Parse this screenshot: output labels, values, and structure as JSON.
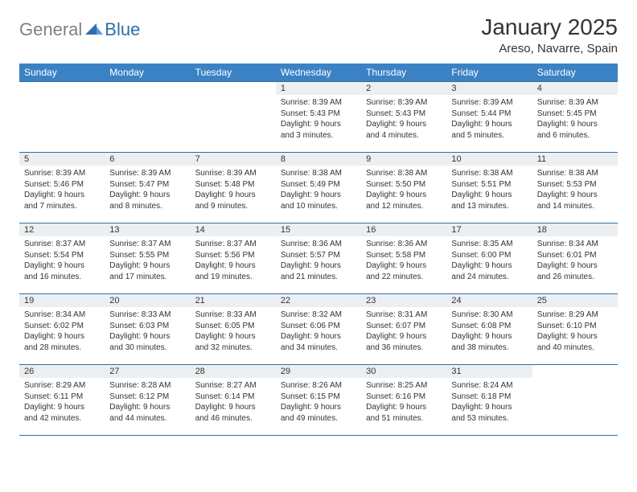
{
  "logo": {
    "gray": "General",
    "blue": "Blue"
  },
  "title": "January 2025",
  "location": "Areso, Navarre, Spain",
  "colors": {
    "header_bg": "#3b82c4",
    "header_text": "#ffffff",
    "line": "#2f6fa8",
    "daynum_bg": "#eceff1",
    "text": "#333333",
    "logo_gray": "#808080",
    "logo_blue": "#2f6fa8"
  },
  "weekdays": [
    "Sunday",
    "Monday",
    "Tuesday",
    "Wednesday",
    "Thursday",
    "Friday",
    "Saturday"
  ],
  "weeks": [
    [
      null,
      null,
      null,
      {
        "n": "1",
        "sr": "Sunrise: 8:39 AM",
        "ss": "Sunset: 5:43 PM",
        "dl1": "Daylight: 9 hours",
        "dl2": "and 3 minutes."
      },
      {
        "n": "2",
        "sr": "Sunrise: 8:39 AM",
        "ss": "Sunset: 5:43 PM",
        "dl1": "Daylight: 9 hours",
        "dl2": "and 4 minutes."
      },
      {
        "n": "3",
        "sr": "Sunrise: 8:39 AM",
        "ss": "Sunset: 5:44 PM",
        "dl1": "Daylight: 9 hours",
        "dl2": "and 5 minutes."
      },
      {
        "n": "4",
        "sr": "Sunrise: 8:39 AM",
        "ss": "Sunset: 5:45 PM",
        "dl1": "Daylight: 9 hours",
        "dl2": "and 6 minutes."
      }
    ],
    [
      {
        "n": "5",
        "sr": "Sunrise: 8:39 AM",
        "ss": "Sunset: 5:46 PM",
        "dl1": "Daylight: 9 hours",
        "dl2": "and 7 minutes."
      },
      {
        "n": "6",
        "sr": "Sunrise: 8:39 AM",
        "ss": "Sunset: 5:47 PM",
        "dl1": "Daylight: 9 hours",
        "dl2": "and 8 minutes."
      },
      {
        "n": "7",
        "sr": "Sunrise: 8:39 AM",
        "ss": "Sunset: 5:48 PM",
        "dl1": "Daylight: 9 hours",
        "dl2": "and 9 minutes."
      },
      {
        "n": "8",
        "sr": "Sunrise: 8:38 AM",
        "ss": "Sunset: 5:49 PM",
        "dl1": "Daylight: 9 hours",
        "dl2": "and 10 minutes."
      },
      {
        "n": "9",
        "sr": "Sunrise: 8:38 AM",
        "ss": "Sunset: 5:50 PM",
        "dl1": "Daylight: 9 hours",
        "dl2": "and 12 minutes."
      },
      {
        "n": "10",
        "sr": "Sunrise: 8:38 AM",
        "ss": "Sunset: 5:51 PM",
        "dl1": "Daylight: 9 hours",
        "dl2": "and 13 minutes."
      },
      {
        "n": "11",
        "sr": "Sunrise: 8:38 AM",
        "ss": "Sunset: 5:53 PM",
        "dl1": "Daylight: 9 hours",
        "dl2": "and 14 minutes."
      }
    ],
    [
      {
        "n": "12",
        "sr": "Sunrise: 8:37 AM",
        "ss": "Sunset: 5:54 PM",
        "dl1": "Daylight: 9 hours",
        "dl2": "and 16 minutes."
      },
      {
        "n": "13",
        "sr": "Sunrise: 8:37 AM",
        "ss": "Sunset: 5:55 PM",
        "dl1": "Daylight: 9 hours",
        "dl2": "and 17 minutes."
      },
      {
        "n": "14",
        "sr": "Sunrise: 8:37 AM",
        "ss": "Sunset: 5:56 PM",
        "dl1": "Daylight: 9 hours",
        "dl2": "and 19 minutes."
      },
      {
        "n": "15",
        "sr": "Sunrise: 8:36 AM",
        "ss": "Sunset: 5:57 PM",
        "dl1": "Daylight: 9 hours",
        "dl2": "and 21 minutes."
      },
      {
        "n": "16",
        "sr": "Sunrise: 8:36 AM",
        "ss": "Sunset: 5:58 PM",
        "dl1": "Daylight: 9 hours",
        "dl2": "and 22 minutes."
      },
      {
        "n": "17",
        "sr": "Sunrise: 8:35 AM",
        "ss": "Sunset: 6:00 PM",
        "dl1": "Daylight: 9 hours",
        "dl2": "and 24 minutes."
      },
      {
        "n": "18",
        "sr": "Sunrise: 8:34 AM",
        "ss": "Sunset: 6:01 PM",
        "dl1": "Daylight: 9 hours",
        "dl2": "and 26 minutes."
      }
    ],
    [
      {
        "n": "19",
        "sr": "Sunrise: 8:34 AM",
        "ss": "Sunset: 6:02 PM",
        "dl1": "Daylight: 9 hours",
        "dl2": "and 28 minutes."
      },
      {
        "n": "20",
        "sr": "Sunrise: 8:33 AM",
        "ss": "Sunset: 6:03 PM",
        "dl1": "Daylight: 9 hours",
        "dl2": "and 30 minutes."
      },
      {
        "n": "21",
        "sr": "Sunrise: 8:33 AM",
        "ss": "Sunset: 6:05 PM",
        "dl1": "Daylight: 9 hours",
        "dl2": "and 32 minutes."
      },
      {
        "n": "22",
        "sr": "Sunrise: 8:32 AM",
        "ss": "Sunset: 6:06 PM",
        "dl1": "Daylight: 9 hours",
        "dl2": "and 34 minutes."
      },
      {
        "n": "23",
        "sr": "Sunrise: 8:31 AM",
        "ss": "Sunset: 6:07 PM",
        "dl1": "Daylight: 9 hours",
        "dl2": "and 36 minutes."
      },
      {
        "n": "24",
        "sr": "Sunrise: 8:30 AM",
        "ss": "Sunset: 6:08 PM",
        "dl1": "Daylight: 9 hours",
        "dl2": "and 38 minutes."
      },
      {
        "n": "25",
        "sr": "Sunrise: 8:29 AM",
        "ss": "Sunset: 6:10 PM",
        "dl1": "Daylight: 9 hours",
        "dl2": "and 40 minutes."
      }
    ],
    [
      {
        "n": "26",
        "sr": "Sunrise: 8:29 AM",
        "ss": "Sunset: 6:11 PM",
        "dl1": "Daylight: 9 hours",
        "dl2": "and 42 minutes."
      },
      {
        "n": "27",
        "sr": "Sunrise: 8:28 AM",
        "ss": "Sunset: 6:12 PM",
        "dl1": "Daylight: 9 hours",
        "dl2": "and 44 minutes."
      },
      {
        "n": "28",
        "sr": "Sunrise: 8:27 AM",
        "ss": "Sunset: 6:14 PM",
        "dl1": "Daylight: 9 hours",
        "dl2": "and 46 minutes."
      },
      {
        "n": "29",
        "sr": "Sunrise: 8:26 AM",
        "ss": "Sunset: 6:15 PM",
        "dl1": "Daylight: 9 hours",
        "dl2": "and 49 minutes."
      },
      {
        "n": "30",
        "sr": "Sunrise: 8:25 AM",
        "ss": "Sunset: 6:16 PM",
        "dl1": "Daylight: 9 hours",
        "dl2": "and 51 minutes."
      },
      {
        "n": "31",
        "sr": "Sunrise: 8:24 AM",
        "ss": "Sunset: 6:18 PM",
        "dl1": "Daylight: 9 hours",
        "dl2": "and 53 minutes."
      },
      null
    ]
  ]
}
